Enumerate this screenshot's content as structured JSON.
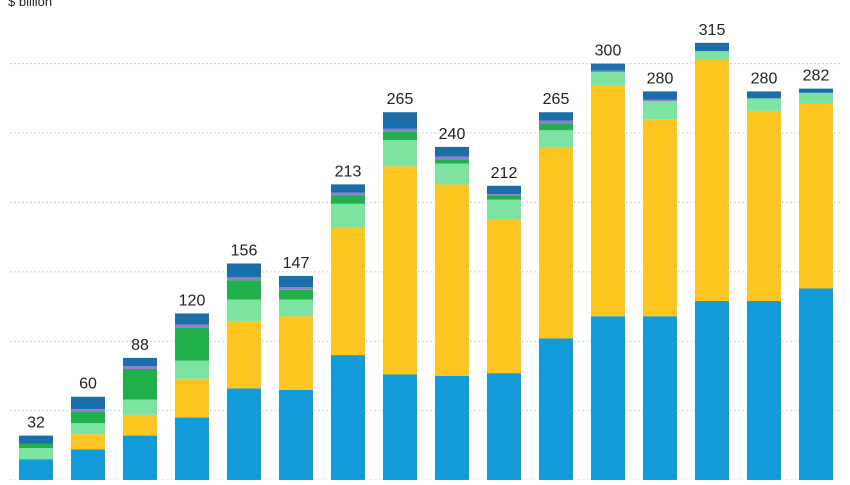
{
  "chart_data": {
    "type": "bar",
    "stacked": true,
    "unit_label": "$ billion",
    "categories": [
      "",
      "",
      "",
      "",
      "",
      "",
      "",
      "",
      "",
      "",
      "",
      "",
      "",
      "",
      "",
      ""
    ],
    "totals": [
      32,
      60,
      88,
      120,
      156,
      147,
      213,
      265,
      240,
      212,
      265,
      300,
      280,
      315,
      280,
      282
    ],
    "series": [
      {
        "color": "#139ad8",
        "values": [
          15,
          22,
          32,
          45,
          66,
          65,
          90,
          76,
          75,
          77,
          102,
          118,
          118,
          129,
          129,
          138
        ]
      },
      {
        "color": "#fcc520",
        "values": [
          0,
          11,
          15,
          28,
          48,
          53,
          92,
          150,
          138,
          111,
          138,
          166,
          142,
          174,
          137,
          133
        ]
      },
      {
        "color": "#7de3a0",
        "values": [
          8,
          8,
          11,
          13,
          16,
          12,
          17,
          19,
          15,
          14,
          12,
          10,
          13,
          6,
          9,
          8
        ]
      },
      {
        "color": "#1fb04b",
        "values": [
          3,
          8,
          22,
          24,
          14,
          7,
          6,
          6,
          3,
          3,
          5,
          0,
          0,
          0,
          0,
          0
        ]
      },
      {
        "color": "#9a7bd0",
        "values": [
          0,
          2,
          2,
          2,
          2,
          2,
          2,
          2,
          2,
          1,
          2,
          1,
          1,
          0,
          0,
          0
        ]
      },
      {
        "color": "#1a6fa8",
        "values": [
          6,
          9,
          6,
          8,
          10,
          8,
          6,
          12,
          7,
          6,
          6,
          5,
          6,
          6,
          5,
          3
        ]
      }
    ],
    "ylim": [
      0,
      330
    ],
    "grid": true
  }
}
